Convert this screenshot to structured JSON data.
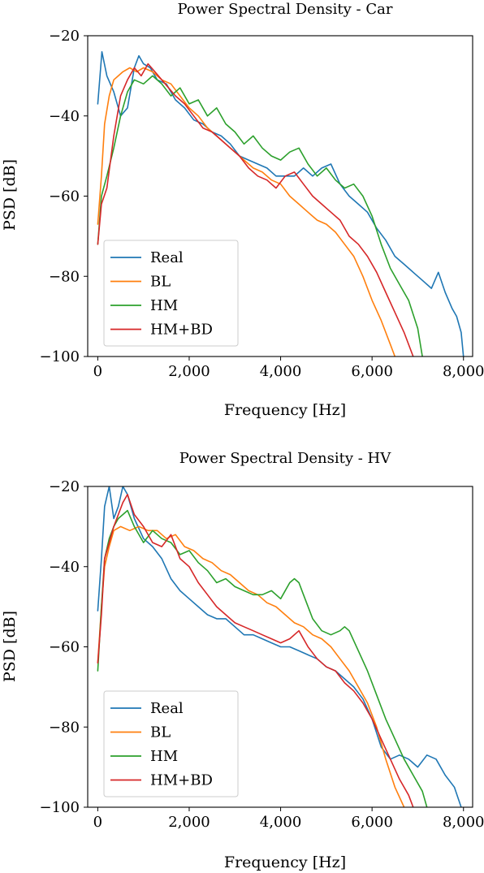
{
  "colors": {
    "real": "#1f77b4",
    "bl": "#ff7f0e",
    "hm": "#2ca02c",
    "hmbd": "#d62728"
  },
  "chart_data": [
    {
      "type": "line",
      "title": "Power Spectral Density - Car",
      "xlabel": "Frequency [Hz]",
      "ylabel": "PSD [dB]",
      "xlim": [
        -220,
        8200
      ],
      "ylim": [
        -100,
        -20
      ],
      "xticks": [
        0,
        2000,
        4000,
        6000,
        8000
      ],
      "xtick_labels": [
        "0",
        "2,000",
        "4,000",
        "6,000",
        "8,000"
      ],
      "yticks": [
        -20,
        -40,
        -60,
        -80,
        -100
      ],
      "ytick_labels": [
        "−20",
        "−40",
        "−60",
        "−80",
        "−100"
      ],
      "grid": false,
      "legend_position": "lower-left",
      "series": [
        {
          "name": "Real",
          "color": "#1f77b4",
          "x": [
            0,
            90,
            200,
            350,
            500,
            650,
            800,
            900,
            1000,
            1150,
            1300,
            1500,
            1700,
            1900,
            2100,
            2300,
            2500,
            2700,
            2900,
            3100,
            3300,
            3500,
            3700,
            3900,
            4100,
            4300,
            4500,
            4700,
            4900,
            5100,
            5300,
            5500,
            5700,
            5900,
            6100,
            6300,
            6500,
            6700,
            6900,
            7100,
            7300,
            7450,
            7600,
            7750,
            7850,
            7950,
            8000
          ],
          "y": [
            -37,
            -24,
            -30,
            -34,
            -40,
            -38,
            -28,
            -25,
            -27,
            -28,
            -31,
            -32,
            -36,
            -38,
            -41,
            -42,
            -44,
            -45,
            -47,
            -50,
            -51,
            -52,
            -53,
            -55,
            -55,
            -55,
            -53,
            -55,
            -53,
            -52,
            -57,
            -60,
            -62,
            -64,
            -68,
            -71,
            -75,
            -77,
            -79,
            -81,
            -83,
            -79,
            -84,
            -88,
            -90,
            -94,
            -100
          ]
        },
        {
          "name": "BL",
          "color": "#ff7f0e",
          "x": [
            0,
            80,
            150,
            250,
            350,
            450,
            550,
            700,
            850,
            1000,
            1200,
            1400,
            1600,
            1800,
            2000,
            2200,
            2400,
            2600,
            2800,
            3000,
            3200,
            3400,
            3600,
            3800,
            4000,
            4200,
            4400,
            4600,
            4800,
            5000,
            5200,
            5400,
            5600,
            5800,
            6000,
            6200,
            6400,
            6500
          ],
          "y": [
            -67,
            -55,
            -42,
            -35,
            -31,
            -30,
            -29,
            -28,
            -29,
            -28,
            -29,
            -31,
            -32,
            -35,
            -38,
            -40,
            -43,
            -45,
            -47,
            -49,
            -51,
            -53,
            -54,
            -56,
            -57,
            -60,
            -62,
            -64,
            -66,
            -67,
            -69,
            -72,
            -75,
            -80,
            -86,
            -91,
            -97,
            -100
          ]
        },
        {
          "name": "HM",
          "color": "#2ca02c",
          "x": [
            0,
            80,
            200,
            350,
            500,
            650,
            800,
            1000,
            1200,
            1400,
            1600,
            1800,
            2000,
            2200,
            2400,
            2600,
            2800,
            3000,
            3200,
            3400,
            3600,
            3800,
            4000,
            4200,
            4400,
            4600,
            4800,
            5000,
            5200,
            5400,
            5600,
            5800,
            6000,
            6200,
            6400,
            6600,
            6800,
            7000,
            7100
          ],
          "y": [
            -72,
            -60,
            -55,
            -48,
            -40,
            -34,
            -31,
            -32,
            -30,
            -32,
            -35,
            -33,
            -37,
            -36,
            -40,
            -38,
            -42,
            -44,
            -47,
            -45,
            -48,
            -50,
            -51,
            -49,
            -48,
            -52,
            -55,
            -53,
            -56,
            -58,
            -57,
            -60,
            -65,
            -72,
            -78,
            -82,
            -86,
            -93,
            -100
          ]
        },
        {
          "name": "HM+BD",
          "color": "#d62728",
          "x": [
            0,
            80,
            200,
            350,
            500,
            650,
            800,
            950,
            1100,
            1250,
            1400,
            1550,
            1700,
            1900,
            2100,
            2300,
            2500,
            2700,
            2900,
            3100,
            3300,
            3500,
            3700,
            3900,
            4100,
            4300,
            4500,
            4700,
            4900,
            5100,
            5300,
            5500,
            5700,
            5900,
            6100,
            6300,
            6500,
            6700,
            6900
          ],
          "y": [
            -72,
            -62,
            -58,
            -45,
            -35,
            -31,
            -28,
            -30,
            -27,
            -29,
            -31,
            -33,
            -35,
            -37,
            -40,
            -43,
            -44,
            -46,
            -48,
            -50,
            -53,
            -55,
            -56,
            -58,
            -55,
            -54,
            -57,
            -60,
            -62,
            -64,
            -66,
            -70,
            -72,
            -75,
            -79,
            -84,
            -89,
            -94,
            -100
          ]
        }
      ]
    },
    {
      "type": "line",
      "title": "Power Spectral Density - HV",
      "xlabel": "Frequency [Hz]",
      "ylabel": "PSD [dB]",
      "xlim": [
        -220,
        8200
      ],
      "ylim": [
        -100,
        -20
      ],
      "xticks": [
        0,
        2000,
        4000,
        6000,
        8000
      ],
      "xtick_labels": [
        "0",
        "2,000",
        "4,000",
        "6,000",
        "8,000"
      ],
      "yticks": [
        -20,
        -40,
        -60,
        -80,
        -100
      ],
      "ytick_labels": [
        "−20",
        "−40",
        "−60",
        "−80",
        "−100"
      ],
      "grid": false,
      "legend_position": "lower-left",
      "series": [
        {
          "name": "Real",
          "color": "#1f77b4",
          "x": [
            0,
            80,
            150,
            250,
            350,
            450,
            550,
            650,
            800,
            1000,
            1200,
            1400,
            1600,
            1800,
            2000,
            2200,
            2400,
            2600,
            2800,
            3000,
            3200,
            3400,
            3600,
            3800,
            4000,
            4200,
            4400,
            4600,
            4800,
            5000,
            5200,
            5400,
            5600,
            5800,
            6000,
            6200,
            6400,
            6600,
            6800,
            7000,
            7200,
            7400,
            7600,
            7800,
            7950
          ],
          "y": [
            -51,
            -38,
            -25,
            -20,
            -28,
            -25,
            -20,
            -22,
            -28,
            -33,
            -35,
            -38,
            -43,
            -46,
            -48,
            -50,
            -52,
            -53,
            -53,
            -55,
            -57,
            -57,
            -58,
            -59,
            -60,
            -60,
            -61,
            -62,
            -63,
            -65,
            -66,
            -68,
            -70,
            -73,
            -78,
            -85,
            -88,
            -87,
            -88,
            -90,
            -87,
            -88,
            -92,
            -95,
            -100
          ]
        },
        {
          "name": "BL",
          "color": "#ff7f0e",
          "x": [
            0,
            80,
            150,
            250,
            350,
            500,
            700,
            900,
            1100,
            1300,
            1500,
            1700,
            1900,
            2100,
            2300,
            2500,
            2700,
            2900,
            3100,
            3300,
            3500,
            3700,
            3900,
            4100,
            4300,
            4500,
            4700,
            4900,
            5100,
            5300,
            5500,
            5700,
            5900,
            6100,
            6300,
            6500,
            6700
          ],
          "y": [
            -64,
            -50,
            -40,
            -35,
            -31,
            -30,
            -31,
            -30,
            -31,
            -31,
            -33,
            -32,
            -35,
            -36,
            -38,
            -39,
            -41,
            -42,
            -44,
            -46,
            -47,
            -49,
            -50,
            -52,
            -54,
            -55,
            -57,
            -58,
            -60,
            -63,
            -66,
            -70,
            -74,
            -80,
            -88,
            -95,
            -100
          ]
        },
        {
          "name": "HM",
          "color": "#2ca02c",
          "x": [
            0,
            80,
            150,
            250,
            350,
            450,
            550,
            650,
            800,
            1000,
            1200,
            1400,
            1600,
            1800,
            2000,
            2200,
            2400,
            2600,
            2800,
            3000,
            3200,
            3400,
            3600,
            3800,
            4000,
            4200,
            4300,
            4400,
            4500,
            4700,
            4900,
            5100,
            5300,
            5400,
            5500,
            5700,
            5900,
            6100,
            6300,
            6500,
            6700,
            6900,
            7100,
            7200
          ],
          "y": [
            -66,
            -50,
            -38,
            -33,
            -30,
            -28,
            -27,
            -26,
            -30,
            -34,
            -31,
            -33,
            -34,
            -37,
            -36,
            -39,
            -41,
            -44,
            -43,
            -45,
            -46,
            -47,
            -47,
            -46,
            -48,
            -44,
            -43,
            -44,
            -47,
            -53,
            -56,
            -57,
            -56,
            -55,
            -56,
            -61,
            -66,
            -72,
            -78,
            -83,
            -88,
            -92,
            -96,
            -100
          ]
        },
        {
          "name": "HM+BD",
          "color": "#d62728",
          "x": [
            0,
            80,
            150,
            250,
            350,
            450,
            550,
            650,
            800,
            1000,
            1200,
            1400,
            1600,
            1800,
            2000,
            2200,
            2400,
            2600,
            2800,
            3000,
            3200,
            3400,
            3600,
            3800,
            4000,
            4200,
            4400,
            4600,
            4800,
            5000,
            5200,
            5400,
            5600,
            5800,
            6000,
            6200,
            6400,
            6600,
            6800,
            6900
          ],
          "y": [
            -64,
            -52,
            -38,
            -34,
            -30,
            -27,
            -24,
            -22,
            -27,
            -30,
            -34,
            -35,
            -32,
            -38,
            -40,
            -44,
            -47,
            -50,
            -52,
            -54,
            -55,
            -56,
            -57,
            -58,
            -59,
            -58,
            -56,
            -60,
            -63,
            -65,
            -66,
            -69,
            -71,
            -74,
            -78,
            -83,
            -88,
            -93,
            -97,
            -100
          ]
        }
      ]
    }
  ]
}
